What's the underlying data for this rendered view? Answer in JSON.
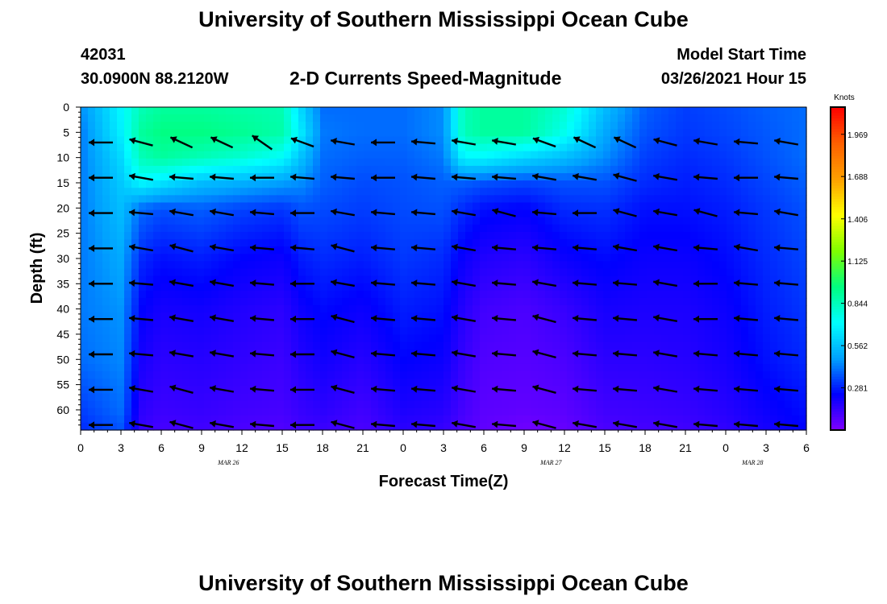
{
  "page": {
    "title_top": "University of Southern Mississippi Ocean Cube",
    "title_bottom": "University of Southern Mississippi Ocean Cube",
    "station_id": "42031",
    "station_coords": "30.0900N 88.2120W",
    "plot_title": "2-D Currents Speed-Magnitude",
    "model_label": "Model Start Time",
    "model_time": "03/26/2021 Hour 15"
  },
  "chart_data": {
    "type": "heatmap",
    "xlabel": "Forecast Time(Z)",
    "ylabel": "Depth (ft)",
    "x_tick_labels": [
      "0",
      "3",
      "6",
      "9",
      "12",
      "15",
      "18",
      "21",
      "0",
      "3",
      "6",
      "9",
      "12",
      "15",
      "18",
      "21",
      "0",
      "3",
      "6"
    ],
    "date_labels": [
      {
        "text": "MAR 26",
        "x_hours": 11
      },
      {
        "text": "MAR 27",
        "x_hours": 35
      },
      {
        "text": "MAR 28",
        "x_hours": 50
      }
    ],
    "xlim_hours": [
      0,
      54
    ],
    "y_tick_labels": [
      "0",
      "5",
      "10",
      "15",
      "20",
      "25",
      "30",
      "35",
      "40",
      "45",
      "50",
      "55",
      "60"
    ],
    "y_ticks": [
      0,
      5,
      10,
      15,
      20,
      25,
      30,
      35,
      40,
      45,
      50,
      55,
      60
    ],
    "ylim_ft": [
      0,
      64
    ],
    "y_inverted": true,
    "colorbar": {
      "unit": "Knots",
      "tick_labels": [
        "1.969",
        "1.688",
        "1.406",
        "1.125",
        "0.844",
        "0.562",
        "0.281"
      ],
      "ticks": [
        1.969,
        1.688,
        1.406,
        1.125,
        0.844,
        0.562,
        0.281
      ],
      "range": [
        0.0,
        2.15
      ],
      "colors": [
        "#8000ff",
        "#0000ff",
        "#00a0ff",
        "#00ffff",
        "#00ff80",
        "#80ff00",
        "#ffff00",
        "#ffa000",
        "#ff6000",
        "#ff0000"
      ]
    },
    "speed_grid": {
      "x_hours": [
        0,
        3,
        4.5,
        6,
        9,
        12,
        15,
        16.5,
        18,
        21,
        24,
        27,
        28.5,
        30,
        33,
        36,
        39,
        42,
        45,
        48,
        51,
        54
      ],
      "depths_ft": [
        0,
        5,
        10,
        15,
        20,
        30,
        40,
        50,
        60,
        64
      ],
      "values": [
        [
          0.45,
          0.7,
          0.85,
          0.9,
          0.9,
          0.88,
          0.86,
          0.6,
          0.4,
          0.4,
          0.4,
          0.45,
          0.85,
          0.9,
          0.9,
          0.8,
          0.55,
          0.38,
          0.33,
          0.35,
          0.38,
          0.4
        ],
        [
          0.42,
          0.68,
          0.9,
          0.95,
          0.95,
          0.92,
          0.88,
          0.65,
          0.42,
          0.4,
          0.4,
          0.45,
          0.85,
          0.9,
          0.9,
          0.75,
          0.5,
          0.36,
          0.32,
          0.34,
          0.37,
          0.4
        ],
        [
          0.42,
          0.62,
          0.85,
          0.9,
          0.85,
          0.8,
          0.72,
          0.55,
          0.4,
          0.38,
          0.38,
          0.42,
          0.7,
          0.7,
          0.62,
          0.55,
          0.45,
          0.33,
          0.3,
          0.32,
          0.36,
          0.4
        ],
        [
          0.42,
          0.58,
          0.7,
          0.65,
          0.55,
          0.52,
          0.48,
          0.45,
          0.38,
          0.35,
          0.36,
          0.38,
          0.38,
          0.36,
          0.34,
          0.36,
          0.36,
          0.3,
          0.28,
          0.3,
          0.34,
          0.38
        ],
        [
          0.42,
          0.55,
          0.4,
          0.36,
          0.38,
          0.34,
          0.32,
          0.36,
          0.35,
          0.33,
          0.35,
          0.36,
          0.3,
          0.26,
          0.24,
          0.3,
          0.31,
          0.26,
          0.26,
          0.28,
          0.32,
          0.36
        ],
        [
          0.42,
          0.5,
          0.3,
          0.26,
          0.28,
          0.24,
          0.22,
          0.28,
          0.3,
          0.28,
          0.32,
          0.3,
          0.22,
          0.18,
          0.16,
          0.22,
          0.25,
          0.22,
          0.22,
          0.25,
          0.3,
          0.34
        ],
        [
          0.42,
          0.46,
          0.24,
          0.2,
          0.21,
          0.18,
          0.16,
          0.22,
          0.25,
          0.22,
          0.28,
          0.26,
          0.17,
          0.12,
          0.1,
          0.14,
          0.2,
          0.19,
          0.19,
          0.22,
          0.28,
          0.32
        ],
        [
          0.4,
          0.44,
          0.2,
          0.16,
          0.17,
          0.15,
          0.13,
          0.18,
          0.21,
          0.17,
          0.24,
          0.22,
          0.14,
          0.09,
          0.08,
          0.1,
          0.16,
          0.16,
          0.17,
          0.2,
          0.26,
          0.3
        ],
        [
          0.33,
          0.4,
          0.16,
          0.13,
          0.14,
          0.12,
          0.11,
          0.14,
          0.16,
          0.12,
          0.19,
          0.17,
          0.11,
          0.07,
          0.06,
          0.07,
          0.12,
          0.13,
          0.14,
          0.17,
          0.22,
          0.26
        ],
        [
          0.3,
          0.36,
          0.14,
          0.11,
          0.12,
          0.1,
          0.09,
          0.12,
          0.13,
          0.1,
          0.16,
          0.14,
          0.09,
          0.06,
          0.03,
          0.05,
          0.1,
          0.11,
          0.12,
          0.15,
          0.2,
          0.24
        ]
      ]
    },
    "vectors": {
      "x_hours": [
        1.5,
        4.5,
        7.5,
        10.5,
        13.5,
        16.5,
        19.5,
        22.5,
        25.5,
        28.5,
        31.5,
        34.5,
        37.5,
        40.5,
        43.5,
        46.5,
        49.5,
        52.5
      ],
      "depths_ft": [
        7,
        14,
        21,
        28,
        35,
        42,
        49,
        56,
        63
      ],
      "directions_deg": [
        [
          180,
          165,
          155,
          155,
          145,
          160,
          170,
          180,
          175,
          170,
          170,
          160,
          155,
          155,
          165,
          170,
          175,
          170
        ],
        [
          180,
          170,
          175,
          175,
          180,
          175,
          175,
          180,
          175,
          175,
          175,
          170,
          170,
          165,
          170,
          175,
          180,
          175
        ],
        [
          180,
          175,
          170,
          170,
          175,
          180,
          170,
          175,
          175,
          170,
          165,
          175,
          180,
          165,
          170,
          165,
          175,
          170
        ],
        [
          180,
          170,
          165,
          170,
          175,
          175,
          165,
          175,
          175,
          170,
          175,
          175,
          175,
          170,
          170,
          175,
          170,
          175
        ],
        [
          180,
          175,
          170,
          170,
          175,
          180,
          170,
          175,
          175,
          170,
          175,
          170,
          175,
          175,
          170,
          180,
          175,
          175
        ],
        [
          180,
          175,
          170,
          170,
          175,
          180,
          165,
          175,
          175,
          170,
          175,
          165,
          175,
          175,
          170,
          180,
          175,
          175
        ],
        [
          180,
          175,
          170,
          170,
          175,
          180,
          165,
          175,
          175,
          170,
          175,
          165,
          175,
          175,
          170,
          175,
          175,
          175
        ],
        [
          180,
          170,
          165,
          170,
          175,
          180,
          165,
          175,
          175,
          170,
          175,
          165,
          175,
          175,
          170,
          175,
          175,
          175
        ],
        [
          180,
          170,
          165,
          170,
          175,
          180,
          165,
          175,
          175,
          170,
          175,
          165,
          170,
          170,
          170,
          175,
          175,
          175
        ]
      ]
    }
  }
}
